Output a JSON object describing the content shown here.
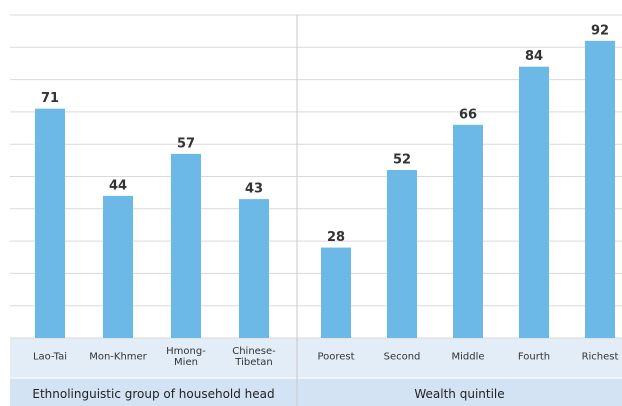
{
  "chart_data": {
    "type": "bar",
    "color": "#6cb8e6",
    "ylim": [
      0,
      100
    ],
    "yticks": [
      0,
      10,
      20,
      30,
      40,
      50,
      60,
      70,
      80,
      90,
      100
    ],
    "grid": true,
    "groups": [
      {
        "label": "Ethnolinguistic group of household head",
        "categories": [
          "Lao-Tai",
          "Mon-Khmer",
          "Hmong-Mien",
          "Chinese-Tibetan"
        ],
        "values": [
          71,
          44,
          57,
          43
        ]
      },
      {
        "label": "Wealth quintile",
        "categories": [
          "Poorest",
          "Second",
          "Middle",
          "Fourth",
          "Richest"
        ],
        "values": [
          28,
          52,
          66,
          84,
          92
        ]
      }
    ]
  }
}
